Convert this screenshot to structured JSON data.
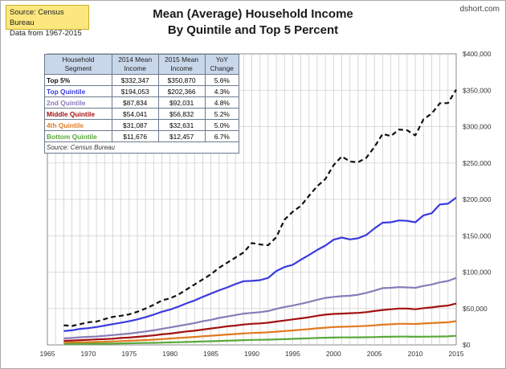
{
  "source_box": {
    "line1": "Source: Census Bureau",
    "line2": "Data from 1967-2015"
  },
  "brand": "dshort.com",
  "chart_data": {
    "type": "line",
    "title": [
      "Mean (Average) Household Income",
      "By Quintile and Top 5 Percent"
    ],
    "xlabel": "",
    "ylabel": "",
    "xlim": [
      1965,
      2015
    ],
    "ylim": [
      0,
      400000
    ],
    "x_ticks": [
      "1965",
      "1970",
      "1975",
      "1980",
      "1985",
      "1990",
      "1995",
      "2000",
      "2005",
      "2010",
      "2015"
    ],
    "y_ticks": [
      "$0",
      "$50,000",
      "$100,000",
      "$150,000",
      "$200,000",
      "$250,000",
      "$300,000",
      "$350,000",
      "$400,000"
    ],
    "y_axis_side": "right",
    "grid": true,
    "x": [
      1967,
      1968,
      1969,
      1970,
      1971,
      1972,
      1973,
      1974,
      1975,
      1976,
      1977,
      1978,
      1979,
      1980,
      1981,
      1982,
      1983,
      1984,
      1985,
      1986,
      1987,
      1988,
      1989,
      1990,
      1991,
      1992,
      1993,
      1994,
      1995,
      1996,
      1997,
      1998,
      1999,
      2000,
      2001,
      2002,
      2003,
      2004,
      2005,
      2006,
      2007,
      2008,
      2009,
      2010,
      2011,
      2012,
      2013,
      2014,
      2015
    ],
    "series": [
      {
        "color": "#111111",
        "dashed": true,
        "values": [
          27000,
          26000,
          28500,
          31000,
          32000,
          35500,
          38500,
          40000,
          42000,
          45500,
          50000,
          55000,
          61000,
          64000,
          69000,
          76000,
          83000,
          90000,
          97000,
          106000,
          113000,
          120000,
          127000,
          140000,
          138000,
          137000,
          148000,
          172000,
          183000,
          191000,
          205000,
          218000,
          228000,
          247000,
          259000,
          252000,
          251000,
          257000,
          272000,
          290000,
          287000,
          296000,
          295000,
          288000,
          310000,
          318000,
          332000,
          332347,
          350870
        ]
      },
      {
        "color": "#3a3adf",
        "values": [
          19000,
          20000,
          22000,
          23000,
          24500,
          26500,
          28500,
          30500,
          32500,
          35000,
          38000,
          41500,
          45500,
          48500,
          52500,
          57000,
          61000,
          66000,
          70500,
          75000,
          79000,
          83500,
          87500,
          88000,
          89000,
          92000,
          101500,
          107000,
          110000,
          117000,
          123500,
          130500,
          136500,
          144500,
          147500,
          145000,
          146500,
          151000,
          160000,
          168000,
          168500,
          171000,
          170500,
          168500,
          178000,
          181000,
          193000,
          194053,
          202366
        ]
      },
      {
        "color": "#8a7bb8",
        "values": [
          9000,
          9500,
          10500,
          11000,
          11500,
          12500,
          13500,
          14500,
          15500,
          17000,
          18500,
          20000,
          22000,
          24000,
          26000,
          28000,
          30000,
          32500,
          34500,
          37000,
          39000,
          41000,
          43000,
          44000,
          45000,
          46500,
          49500,
          52000,
          54000,
          56500,
          59000,
          62000,
          64500,
          66000,
          67000,
          67500,
          69000,
          71500,
          74500,
          78000,
          78500,
          79500,
          79000,
          78500,
          81000,
          83000,
          86000,
          87834,
          92031
        ]
      },
      {
        "color": "#a31111",
        "values": [
          5500,
          6000,
          6500,
          7000,
          7500,
          8000,
          8500,
          9500,
          10000,
          11000,
          12000,
          13000,
          14500,
          15500,
          17000,
          18500,
          19500,
          21000,
          22500,
          24000,
          25500,
          26500,
          28000,
          29000,
          29500,
          30500,
          32000,
          33500,
          35000,
          36500,
          38000,
          40000,
          41500,
          42500,
          43000,
          43500,
          44000,
          45000,
          46500,
          48000,
          49000,
          50000,
          50000,
          49000,
          50500,
          51500,
          53000,
          54041,
          56832
        ]
      },
      {
        "color": "#e07a1f",
        "values": [
          3000,
          3200,
          3500,
          3800,
          4000,
          4300,
          4700,
          5200,
          5600,
          6100,
          6600,
          7200,
          8000,
          8700,
          9500,
          10200,
          10900,
          11800,
          12600,
          13400,
          14200,
          14900,
          15700,
          16300,
          16700,
          17300,
          18100,
          19000,
          19900,
          20800,
          21700,
          22800,
          23700,
          24500,
          24900,
          25200,
          25600,
          26100,
          26800,
          27700,
          28300,
          28900,
          29000,
          28700,
          29400,
          29900,
          30500,
          31087,
          32631
        ]
      },
      {
        "color": "#5aa83a",
        "values": [
          1200,
          1300,
          1400,
          1500,
          1600,
          1700,
          1800,
          2000,
          2200,
          2400,
          2600,
          2800,
          3100,
          3400,
          3700,
          4000,
          4300,
          4700,
          5000,
          5400,
          5800,
          6100,
          6500,
          6800,
          7000,
          7200,
          7500,
          7900,
          8300,
          8700,
          9100,
          9500,
          9800,
          10100,
          10300,
          10300,
          10400,
          10500,
          10700,
          11000,
          11200,
          11400,
          11400,
          11200,
          11300,
          11400,
          11500,
          11676,
          12457
        ]
      }
    ]
  },
  "table": {
    "headers": [
      [
        "Household",
        "Segment"
      ],
      [
        "2014 Mean",
        "Income"
      ],
      [
        "2015 Mean",
        "Income"
      ],
      [
        "YoY",
        "Change"
      ]
    ],
    "rows": [
      {
        "segment": "Top 5%",
        "y2014": "$332,347",
        "y2015": "$350,870",
        "yoy": "5.6%",
        "color": "#111111"
      },
      {
        "segment": "Top Quintile",
        "y2014": "$194,053",
        "y2015": "$202,366",
        "yoy": "4.3%",
        "color": "#3a3adf"
      },
      {
        "segment": "2nd Quintile",
        "y2014": "$87,834",
        "y2015": "$92,031",
        "yoy": "4.8%",
        "color": "#8a7bb8"
      },
      {
        "segment": "Middle Quintile",
        "y2014": "$54,041",
        "y2015": "$56,832",
        "yoy": "5.2%",
        "color": "#a31111"
      },
      {
        "segment": "4th Quintile",
        "y2014": "$31,087",
        "y2015": "$32,631",
        "yoy": "5.0%",
        "color": "#e07a1f"
      },
      {
        "segment": "Bottom Quintile",
        "y2014": "$11,676",
        "y2015": "$12,457",
        "yoy": "6.7%",
        "color": "#5aa83a"
      }
    ],
    "source_note": "Source: Census Bureau"
  }
}
